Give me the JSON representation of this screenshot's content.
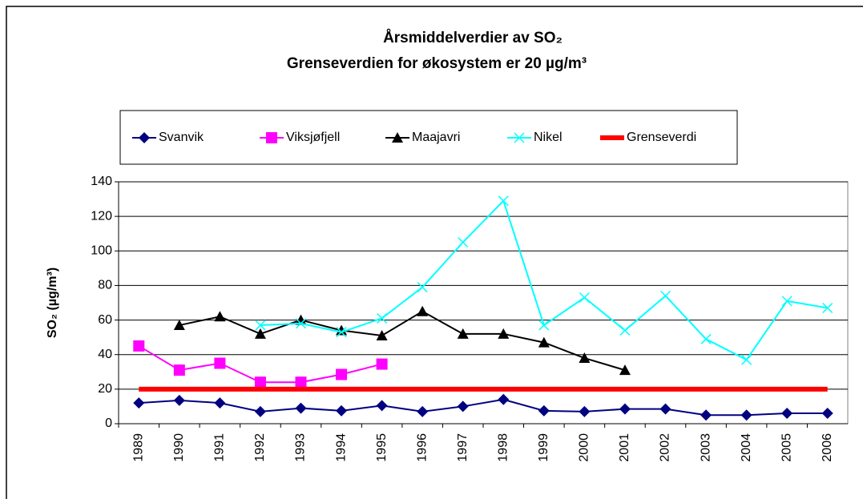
{
  "chart_data": {
    "type": "line",
    "title": "Årsmiddelverdier av SO₂",
    "subtitle": "Grenseverdien for økosystem er 20 µg/m³",
    "y_label": "SO₂ (µg/m³)",
    "categories": [
      "1989",
      "1990",
      "1991",
      "1992",
      "1993",
      "1994",
      "1995",
      "1996",
      "1997",
      "1998",
      "1999",
      "2000",
      "2001",
      "2002",
      "2003",
      "2004",
      "2005",
      "2006"
    ],
    "series": [
      {
        "name": "Svanvik",
        "color": "#000080",
        "marker": "diamond",
        "values": [
          12,
          13.5,
          12,
          7,
          9,
          7.5,
          10.5,
          7,
          10,
          14,
          7.5,
          7,
          8.5,
          8.5,
          5,
          5,
          6,
          6
        ]
      },
      {
        "name": "Viksjøfjell",
        "color": "#ff00ff",
        "marker": "square",
        "values": [
          45,
          31,
          35,
          24,
          24,
          28.5,
          34.5,
          null,
          null,
          null,
          null,
          null,
          null,
          null,
          null,
          null,
          null,
          null
        ]
      },
      {
        "name": "Maajavri",
        "color": "#000000",
        "marker": "triangle",
        "values": [
          null,
          57,
          62,
          52,
          60,
          54,
          51,
          65,
          52,
          52,
          47,
          38,
          31,
          null,
          null,
          null,
          null,
          null
        ]
      },
      {
        "name": "Nikel",
        "color": "#00ffff",
        "marker": "x",
        "values": [
          null,
          null,
          null,
          57,
          58,
          53,
          61,
          79,
          105,
          129,
          57,
          73,
          54,
          74,
          49,
          37,
          71,
          67
        ]
      },
      {
        "name": "Grenseverdi",
        "color": "#ff0000",
        "line_width": 6,
        "values": [
          20,
          20,
          20,
          20,
          20,
          20,
          20,
          20,
          20,
          20,
          20,
          20,
          20,
          20,
          20,
          20,
          20,
          20
        ]
      }
    ],
    "ylim": [
      0,
      140
    ],
    "yticks": [
      0,
      20,
      40,
      60,
      80,
      100,
      120,
      140
    ],
    "grid": true
  }
}
